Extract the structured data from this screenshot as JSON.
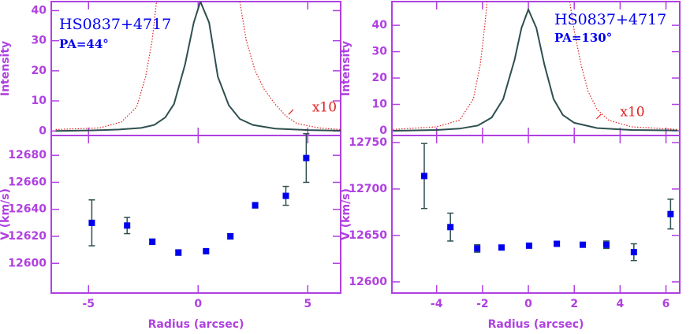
{
  "chart_data": [
    {
      "type": "line",
      "title": "HS0837+4717",
      "subtitle": "PA=44°",
      "ylabel": "Intensity",
      "xlim": [
        -6.7,
        6.5
      ],
      "ylim": [
        -1.5,
        43
      ],
      "yticks": [
        0,
        10,
        20,
        30,
        40
      ],
      "series": [
        {
          "color": "#2f4f4f",
          "style": "solid",
          "x": [
            -6.5,
            -4.8,
            -3.6,
            -2.6,
            -2.0,
            -1.5,
            -1.1,
            -0.6,
            -0.2,
            0.1,
            0.5,
            0.9,
            1.4,
            1.9,
            2.5,
            3.5,
            5.0,
            6.5
          ],
          "values": [
            0,
            0.2,
            0.5,
            1,
            2,
            4.5,
            9,
            22,
            36,
            43,
            36,
            18,
            8.5,
            4,
            2,
            0.8,
            0.3,
            0.1
          ]
        },
        {
          "color": "#e02020",
          "style": "dotted",
          "x": [
            -6.5,
            -4.5,
            -3.5,
            -2.8,
            -2.4,
            -2.1,
            -1.9,
            0,
            1.9,
            2.2,
            2.6,
            3.0,
            3.5,
            4.0,
            4.5,
            5.5,
            6.5
          ],
          "values": [
            0.5,
            1,
            3,
            8,
            18,
            30,
            43,
            null,
            43,
            30,
            20,
            14,
            9,
            5,
            2.5,
            1,
            0.5
          ]
        }
      ],
      "annotation": {
        "text": "x10",
        "x": 5.2,
        "y": 7.6,
        "color": "#e02020"
      }
    },
    {
      "type": "line",
      "title": "HS0837+4717",
      "subtitle": "PA=130°",
      "ylabel": "Intensity",
      "xlim": [
        -5.95,
        6.6
      ],
      "ylim": [
        -1.8,
        49
      ],
      "yticks": [
        0,
        10,
        20,
        30,
        40
      ],
      "series": [
        {
          "color": "#2f4f4f",
          "style": "solid",
          "x": [
            -5.9,
            -4,
            -3,
            -2.2,
            -1.6,
            -1.1,
            -0.6,
            -0.3,
            0,
            0.35,
            0.7,
            1.1,
            1.5,
            2,
            3,
            4.5,
            6.5
          ],
          "values": [
            0,
            0.3,
            0.8,
            2,
            5,
            12,
            27,
            39,
            46,
            39,
            25,
            12,
            6,
            3,
            1,
            0.3,
            0.1
          ]
        },
        {
          "color": "#e02020",
          "style": "dotted",
          "x": [
            -5.9,
            -4,
            -3,
            -2.4,
            -2.1,
            -1.9,
            -1.8,
            0,
            1.8,
            2,
            2.3,
            2.6,
            3,
            3.5,
            4.5,
            6.5
          ],
          "values": [
            0.5,
            1.5,
            4,
            12,
            25,
            40,
            49,
            null,
            49,
            38,
            25,
            15,
            8,
            4,
            1.5,
            0.5
          ]
        }
      ],
      "annotation": {
        "text": "x10",
        "x": 4.0,
        "y": 6.9,
        "color": "#e02020"
      }
    },
    {
      "type": "scatter",
      "xlabel": "Radius (arcsec)",
      "ylabel": "V (km/s)",
      "xlim": [
        -6.7,
        6.5
      ],
      "xticks": [
        -5,
        0,
        5
      ],
      "ylim": [
        12578,
        12694.7
      ],
      "yticks": [
        12600,
        12620,
        12640,
        12660,
        12680
      ],
      "color": "#0000ee",
      "error_color": "#2f4f4f",
      "x": [
        -4.85,
        -3.24,
        -2.09,
        -0.9,
        0.36,
        1.47,
        2.6,
        4.0,
        4.93
      ],
      "values": [
        12630,
        12628,
        12616,
        12608,
        12609,
        12620,
        12643,
        12650,
        12678
      ],
      "errors": [
        17,
        6,
        2,
        2,
        1,
        2,
        2,
        7,
        18
      ]
    },
    {
      "type": "scatter",
      "xlabel": "Radius (arcsec)",
      "ylabel": "V (km/s)",
      "xlim": [
        -5.95,
        6.6
      ],
      "xticks": [
        -4,
        -2,
        0,
        2,
        4,
        6
      ],
      "ylim": [
        12588,
        12757.6
      ],
      "yticks": [
        12600,
        12650,
        12700,
        12750
      ],
      "color": "#0000ee",
      "error_color": "#2f4f4f",
      "x": [
        -4.54,
        -3.4,
        -2.23,
        -1.17,
        0.03,
        1.24,
        2.37,
        3.4,
        4.6,
        6.2
      ],
      "values": [
        12714,
        12659,
        12636,
        12637,
        12639,
        12641,
        12640,
        12640,
        12632,
        12673
      ],
      "errors": [
        35,
        15,
        4,
        2,
        2,
        2,
        2,
        4,
        9,
        16
      ]
    }
  ]
}
